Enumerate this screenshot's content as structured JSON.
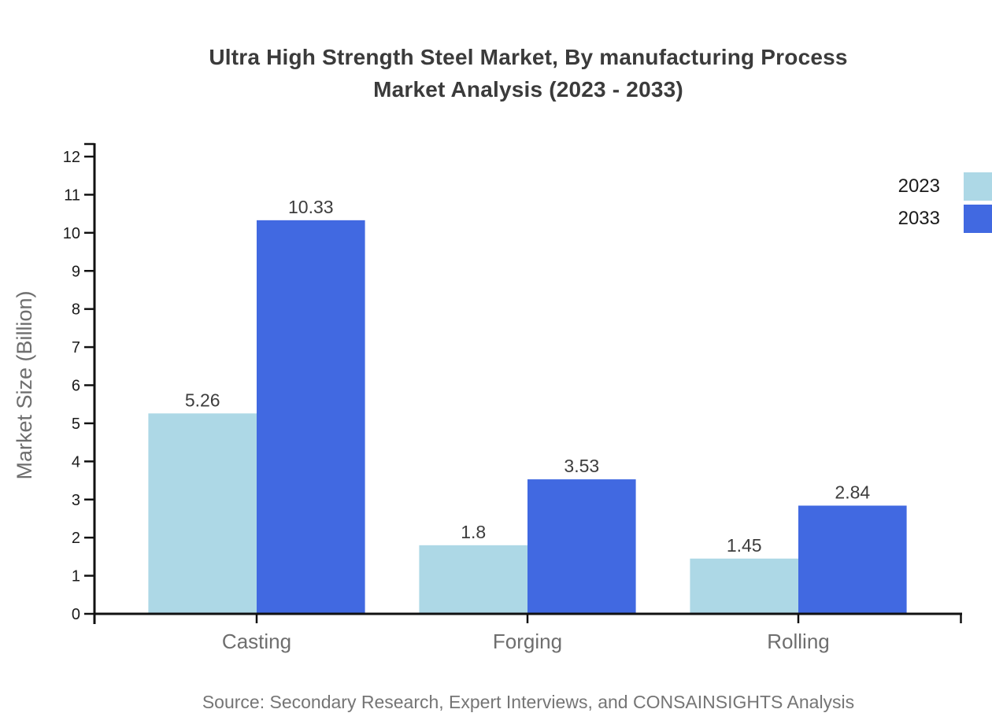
{
  "title": {
    "line1": "Ultra High Strength Steel Market, By manufacturing Process",
    "line2": "Market Analysis (2023 - 2033)"
  },
  "source": "Source: Secondary Research, Expert Interviews, and CONSAINSIGHTS Analysis",
  "chart_data": {
    "type": "bar",
    "categories": [
      "Casting",
      "Forging",
      "Rolling"
    ],
    "series": [
      {
        "name": "2023",
        "color": "#ADD8E6",
        "values": [
          5.26,
          1.8,
          1.45
        ]
      },
      {
        "name": "2033",
        "color": "#4169E1",
        "values": [
          10.33,
          3.53,
          2.84
        ]
      }
    ],
    "title": "Ultra High Strength Steel Market, By manufacturing Process Market Analysis (2023 - 2033)",
    "xlabel": "",
    "ylabel": "Market Size (Billion)",
    "ylim": [
      0,
      12
    ],
    "ytick_step": 1,
    "yticks": [
      0,
      1,
      2,
      3,
      4,
      5,
      6,
      7,
      8,
      9,
      10,
      11,
      12
    ],
    "grid": false,
    "legend_position": "top-right",
    "bar_value_labels_shown": true
  }
}
